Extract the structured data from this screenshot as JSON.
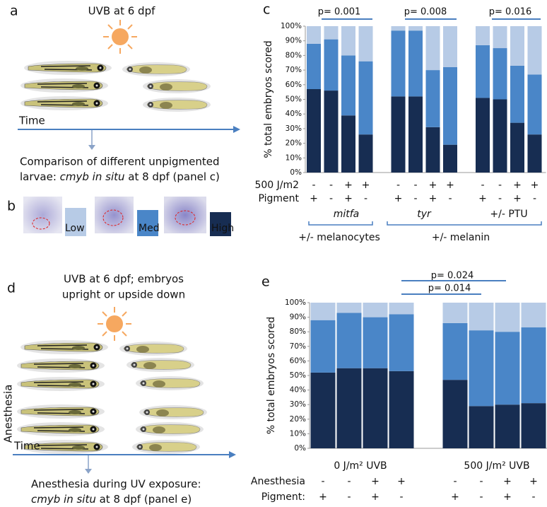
{
  "panels": {
    "a": {
      "letter": "a",
      "title": "UVB at 6 dpf",
      "time": "Time",
      "caption_line1": "Comparison of different unpigmented",
      "caption_line2_pre": "larvae: ",
      "caption_line2_italic": "cmyb in situ",
      "caption_line2_post": " at 8 dpf (panel c)"
    },
    "b": {
      "letter": "b"
    },
    "d": {
      "letter": "d",
      "title_line1": "UVB at 6 dpf; embryos",
      "title_line2": "upright or upside down",
      "side_label": "Anesthesia",
      "time": "Time",
      "caption_line1": "Anesthesia during UV exposure:",
      "caption_line2_italic": "cmyb in situ",
      "caption_line2_post": " at 8 dpf (panel e)"
    }
  },
  "chart_data": [
    {
      "type": "stacked_bar",
      "letter": "c",
      "ylabel": "% total embryos scored",
      "categories": [
        null,
        null,
        null,
        null,
        null,
        null,
        null,
        null,
        null,
        null,
        null,
        null
      ],
      "series": [
        {
          "name": "High",
          "color": "#172d52",
          "values": [
            57,
            56,
            39,
            26,
            52,
            52,
            31,
            19,
            51,
            50,
            34,
            26
          ]
        },
        {
          "name": "Med",
          "color": "#4a86c8",
          "values": [
            31,
            35,
            41,
            50,
            45,
            45,
            39,
            53,
            36,
            35,
            39,
            41
          ]
        },
        {
          "name": "Low",
          "color": "#b7cbe6",
          "values": [
            12,
            9,
            20,
            24,
            3,
            3,
            30,
            28,
            13,
            15,
            27,
            33
          ]
        }
      ],
      "ylim": [
        0,
        100
      ],
      "yticks": [
        {
          "value": 0,
          "label": "0%"
        },
        {
          "value": 10,
          "label": "10%"
        },
        {
          "value": 20,
          "label": "20%"
        },
        {
          "value": 30,
          "label": "30%"
        },
        {
          "value": 40,
          "label": "40%"
        },
        {
          "value": 50,
          "label": "50%"
        },
        {
          "value": 60,
          "label": "60%"
        },
        {
          "value": 70,
          "label": "70%"
        },
        {
          "value": 80,
          "label": "80%"
        },
        {
          "value": 90,
          "label": "90%"
        },
        {
          "value": 100,
          "label": "100%"
        }
      ],
      "grid": false,
      "annotations": [
        "p= 0.001",
        "p= 0.008",
        "p= 0.016"
      ],
      "group_labels": [
        "mitfa",
        "tyr",
        "+/- PTU"
      ],
      "bracket_labels": [
        "+/- melanocytes",
        "+/- melanin"
      ],
      "rows": [
        {
          "label": "500 J/m2",
          "marks": [
            "-",
            "-",
            "+",
            "+",
            "-",
            "-",
            "+",
            "+",
            "-",
            "-",
            "+",
            "+"
          ]
        },
        {
          "label": "Pigment",
          "marks": [
            "+",
            "-",
            "+",
            "-",
            "+",
            "-",
            "+",
            "-",
            "+",
            "-",
            "+",
            "-"
          ]
        }
      ]
    },
    {
      "type": "stacked_bar",
      "letter": "e",
      "ylabel": "% total embryos scored",
      "categories": [
        null,
        null,
        null,
        null,
        null,
        null,
        null,
        null
      ],
      "series": [
        {
          "name": "High",
          "color": "#172d52",
          "values": [
            52,
            55,
            55,
            53,
            47,
            29,
            30,
            31
          ]
        },
        {
          "name": "Med",
          "color": "#4a86c8",
          "values": [
            36,
            38,
            35,
            39,
            39,
            52,
            50,
            52
          ]
        },
        {
          "name": "Low",
          "color": "#b7cbe6",
          "values": [
            12,
            7,
            10,
            8,
            14,
            19,
            20,
            17
          ]
        }
      ],
      "ylim": [
        0,
        100
      ],
      "yticks": [
        {
          "value": 0,
          "label": "0%"
        },
        {
          "value": 10,
          "label": "10%"
        },
        {
          "value": 20,
          "label": "20%"
        },
        {
          "value": 30,
          "label": "30%"
        },
        {
          "value": 40,
          "label": "40%"
        },
        {
          "value": 50,
          "label": "50%"
        },
        {
          "value": 60,
          "label": "60%"
        },
        {
          "value": 70,
          "label": "70%"
        },
        {
          "value": 80,
          "label": "80%"
        },
        {
          "value": 90,
          "label": "90%"
        },
        {
          "value": 100,
          "label": "100%"
        }
      ],
      "grid": false,
      "annotations": [
        "p= 0.024",
        "p= 0.014"
      ],
      "group_labels": [
        "0 J/m² UVB",
        "500 J/m² UVB"
      ],
      "rows": [
        {
          "label": "Anesthesia",
          "marks": [
            "-",
            "-",
            "+",
            "+",
            "-",
            "-",
            "+",
            "+"
          ]
        },
        {
          "label": "Pigment:",
          "marks": [
            "+",
            "-",
            "+",
            "-",
            "+",
            "-",
            "+",
            "-"
          ]
        }
      ]
    }
  ]
}
